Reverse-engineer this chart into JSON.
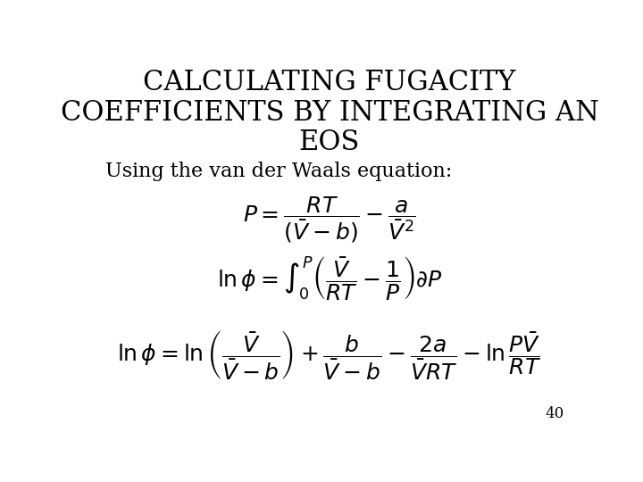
{
  "title_line1": "CALCULATING FUGACITY",
  "title_line2": "COEFFICIENTS BY INTEGRATING AN",
  "title_line3": "EOS",
  "subtitle": "Using the van der Waals equation:",
  "page_number": "40",
  "bg_color": "#ffffff",
  "text_color": "#000000",
  "title_fontsize": 22,
  "subtitle_fontsize": 16,
  "eq_fontsize": 18,
  "page_fontsize": 12
}
